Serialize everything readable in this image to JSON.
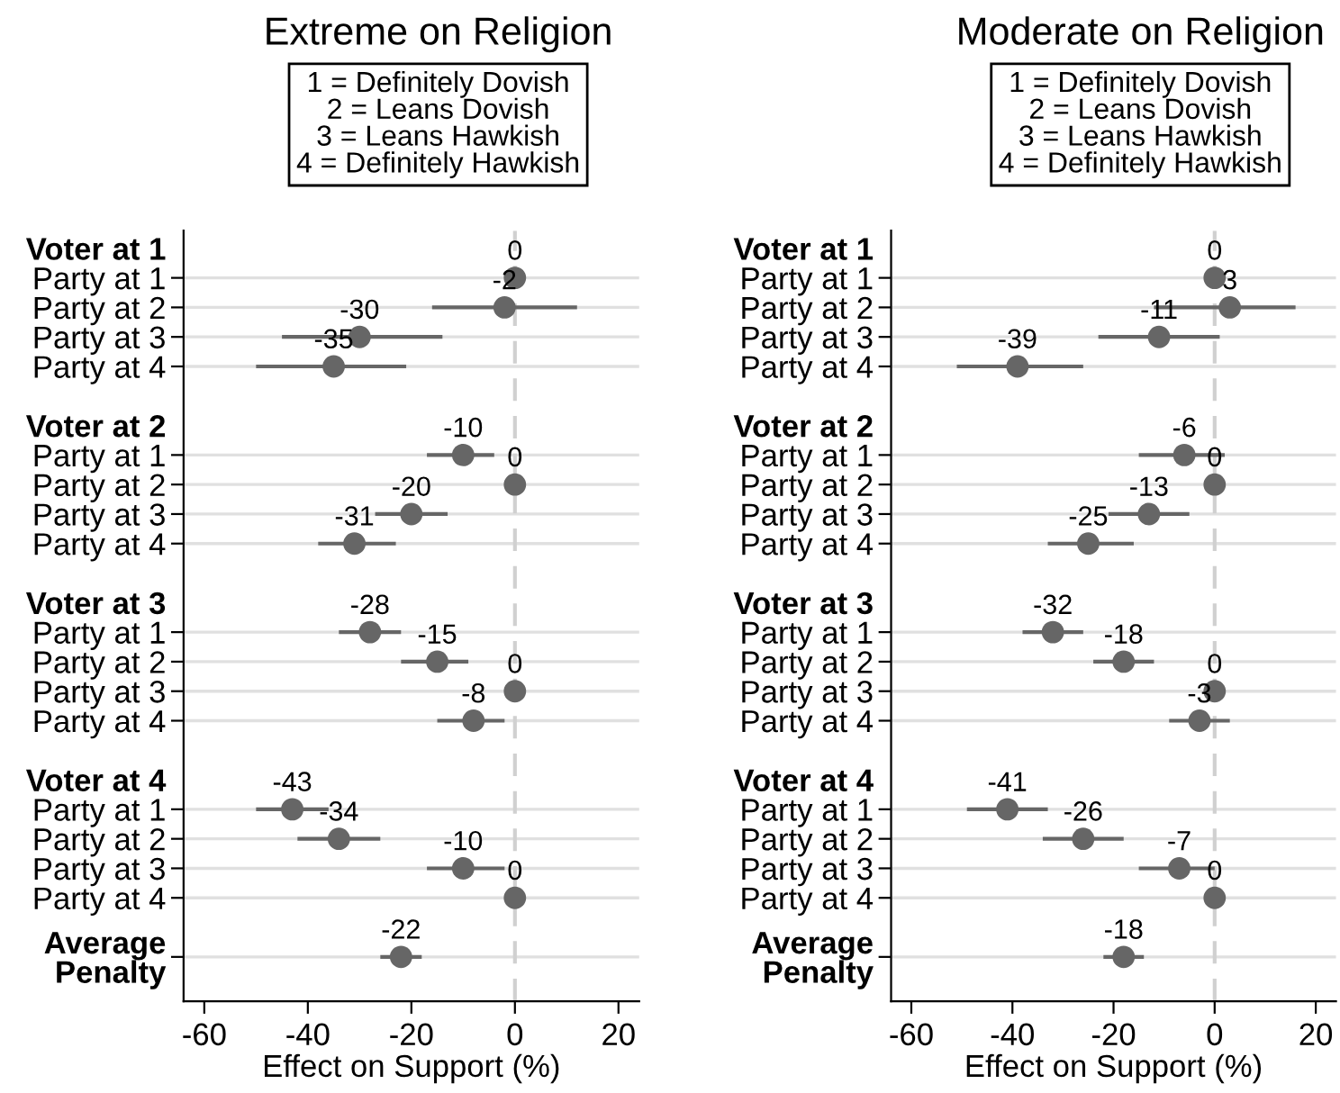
{
  "chart_data": [
    {
      "type": "scatter",
      "orientation": "horizontal",
      "title": "Extreme on Religion",
      "xlabel": "Effect on Support (%)",
      "annotations": [
        "1 = Definitely Dovish",
        "2 = Leans Dovish",
        "3 = Leans Hawkish",
        "4 = Definitely Hawkish"
      ],
      "categories": [
        "Voter at 1",
        "Party at 1",
        "Party at 2",
        "Party at 3",
        "Party at 4",
        null,
        "Voter at 2",
        "Party at 1",
        "Party at 2",
        "Party at 3",
        "Party at 4",
        null,
        "Voter at 3",
        "Party at 1",
        "Party at 2",
        "Party at 3",
        "Party at 4",
        null,
        "Voter at 4",
        "Party at 1",
        "Party at 2",
        "Party at 3",
        "Party at 4",
        null,
        "Average\nPenalty"
      ],
      "series": [
        {
          "color": "#666666",
          "values": [
            null,
            0,
            -2,
            -30,
            -35,
            null,
            null,
            -10,
            0,
            -20,
            -31,
            null,
            null,
            -28,
            -15,
            0,
            -8,
            null,
            null,
            -43,
            -34,
            -10,
            0,
            null,
            -22
          ],
          "errors": [
            null,
            null,
            [
              -16,
              12
            ],
            [
              -45,
              -14
            ],
            [
              -50,
              -21
            ],
            null,
            null,
            [
              -17,
              -4
            ],
            null,
            [
              -27,
              -13
            ],
            [
              -38,
              -23
            ],
            null,
            null,
            [
              -34,
              -22
            ],
            [
              -22,
              -9
            ],
            null,
            [
              -15,
              -2
            ],
            null,
            null,
            [
              -50,
              -36
            ],
            [
              -42,
              -26
            ],
            [
              -17,
              -2
            ],
            null,
            null,
            [
              -26,
              -18
            ]
          ]
        }
      ],
      "data_labels": true,
      "xlim": [
        -64,
        24
      ],
      "xticks": [
        -60,
        -40,
        -20,
        0,
        20
      ],
      "grid": "y",
      "ref_lines": [
        {
          "axis": "x",
          "value": 0,
          "color": "#d0d0d0",
          "line_style": "dashed"
        }
      ]
    },
    {
      "type": "scatter",
      "orientation": "horizontal",
      "title": "Moderate on Religion",
      "xlabel": "Effect on Support (%)",
      "annotations": [
        "1 = Definitely Dovish",
        "2 = Leans Dovish",
        "3 = Leans Hawkish",
        "4 = Definitely Hawkish"
      ],
      "categories": [
        "Voter at 1",
        "Party at 1",
        "Party at 2",
        "Party at 3",
        "Party at 4",
        null,
        "Voter at 2",
        "Party at 1",
        "Party at 2",
        "Party at 3",
        "Party at 4",
        null,
        "Voter at 3",
        "Party at 1",
        "Party at 2",
        "Party at 3",
        "Party at 4",
        null,
        "Voter at 4",
        "Party at 1",
        "Party at 2",
        "Party at 3",
        "Party at 4",
        null,
        "Average\nPenalty"
      ],
      "series": [
        {
          "color": "#666666",
          "values": [
            null,
            0,
            3,
            -11,
            -39,
            null,
            null,
            -6,
            0,
            -13,
            -25,
            null,
            null,
            -32,
            -18,
            0,
            -3,
            null,
            null,
            -41,
            -26,
            -7,
            0,
            null,
            -18
          ],
          "errors": [
            null,
            null,
            [
              -12,
              16
            ],
            [
              -23,
              1
            ],
            [
              -51,
              -26
            ],
            null,
            null,
            [
              -15,
              2
            ],
            null,
            [
              -21,
              -5
            ],
            [
              -33,
              -16
            ],
            null,
            null,
            [
              -38,
              -26
            ],
            [
              -24,
              -12
            ],
            null,
            [
              -9,
              3
            ],
            null,
            null,
            [
              -49,
              -33
            ],
            [
              -34,
              -18
            ],
            [
              -15,
              0
            ],
            null,
            null,
            [
              -22,
              -14
            ]
          ]
        }
      ],
      "data_labels": true,
      "xlim": [
        -64,
        24
      ],
      "xticks": [
        -60,
        -40,
        -20,
        0,
        20
      ],
      "grid": "y",
      "ref_lines": [
        {
          "axis": "x",
          "value": 0,
          "color": "#d0d0d0",
          "line_style": "dashed"
        }
      ]
    }
  ]
}
